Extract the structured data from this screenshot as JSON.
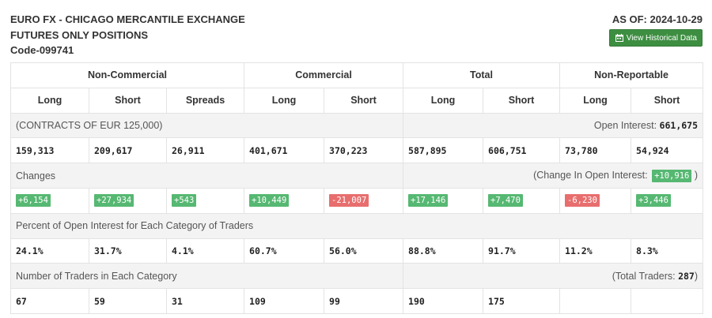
{
  "header": {
    "title_line1": "EURO FX - CHICAGO MERCANTILE EXCHANGE",
    "title_line2": "FUTURES ONLY POSITIONS",
    "code": "Code-099741",
    "as_of": "AS OF: 2024-10-29",
    "history_button": "View Historical Data",
    "history_icon": "calendar-icon"
  },
  "table": {
    "groups": [
      "Non-Commercial",
      "Commercial",
      "Total",
      "Non-Reportable"
    ],
    "columns": [
      "Long",
      "Short",
      "Spreads",
      "Long",
      "Short",
      "Long",
      "Short",
      "Long",
      "Short"
    ],
    "contracts_label": "(CONTRACTS OF EUR 125,000)",
    "open_interest_label": "Open Interest:",
    "open_interest_value": "661,675",
    "positions": [
      "159,313",
      "209,617",
      "26,911",
      "401,671",
      "370,223",
      "587,895",
      "606,751",
      "73,780",
      "54,924"
    ],
    "changes_label": "Changes",
    "change_oi_label": "(Change In Open Interest:",
    "change_oi_value": "+10,916",
    "change_oi_close": ")",
    "changes": [
      "+6,154",
      "+27,934",
      "+543",
      "+10,449",
      "-21,007",
      "+17,146",
      "+7,470",
      "-6,230",
      "+3,446"
    ],
    "percent_label": "Percent of Open Interest for Each Category of Traders",
    "percents": [
      "24.1%",
      "31.7%",
      "4.1%",
      "60.7%",
      "56.0%",
      "88.8%",
      "91.7%",
      "11.2%",
      "8.3%"
    ],
    "traders_label": "Number of Traders in Each Category",
    "total_traders_label": "(Total Traders:",
    "total_traders_value": "287",
    "total_traders_close": ")",
    "traders": [
      "67",
      "59",
      "31",
      "109",
      "99",
      "190",
      "175",
      "",
      ""
    ]
  },
  "colors": {
    "positive": "#56b872",
    "negative": "#e86e6e",
    "button": "#3d8e41"
  }
}
